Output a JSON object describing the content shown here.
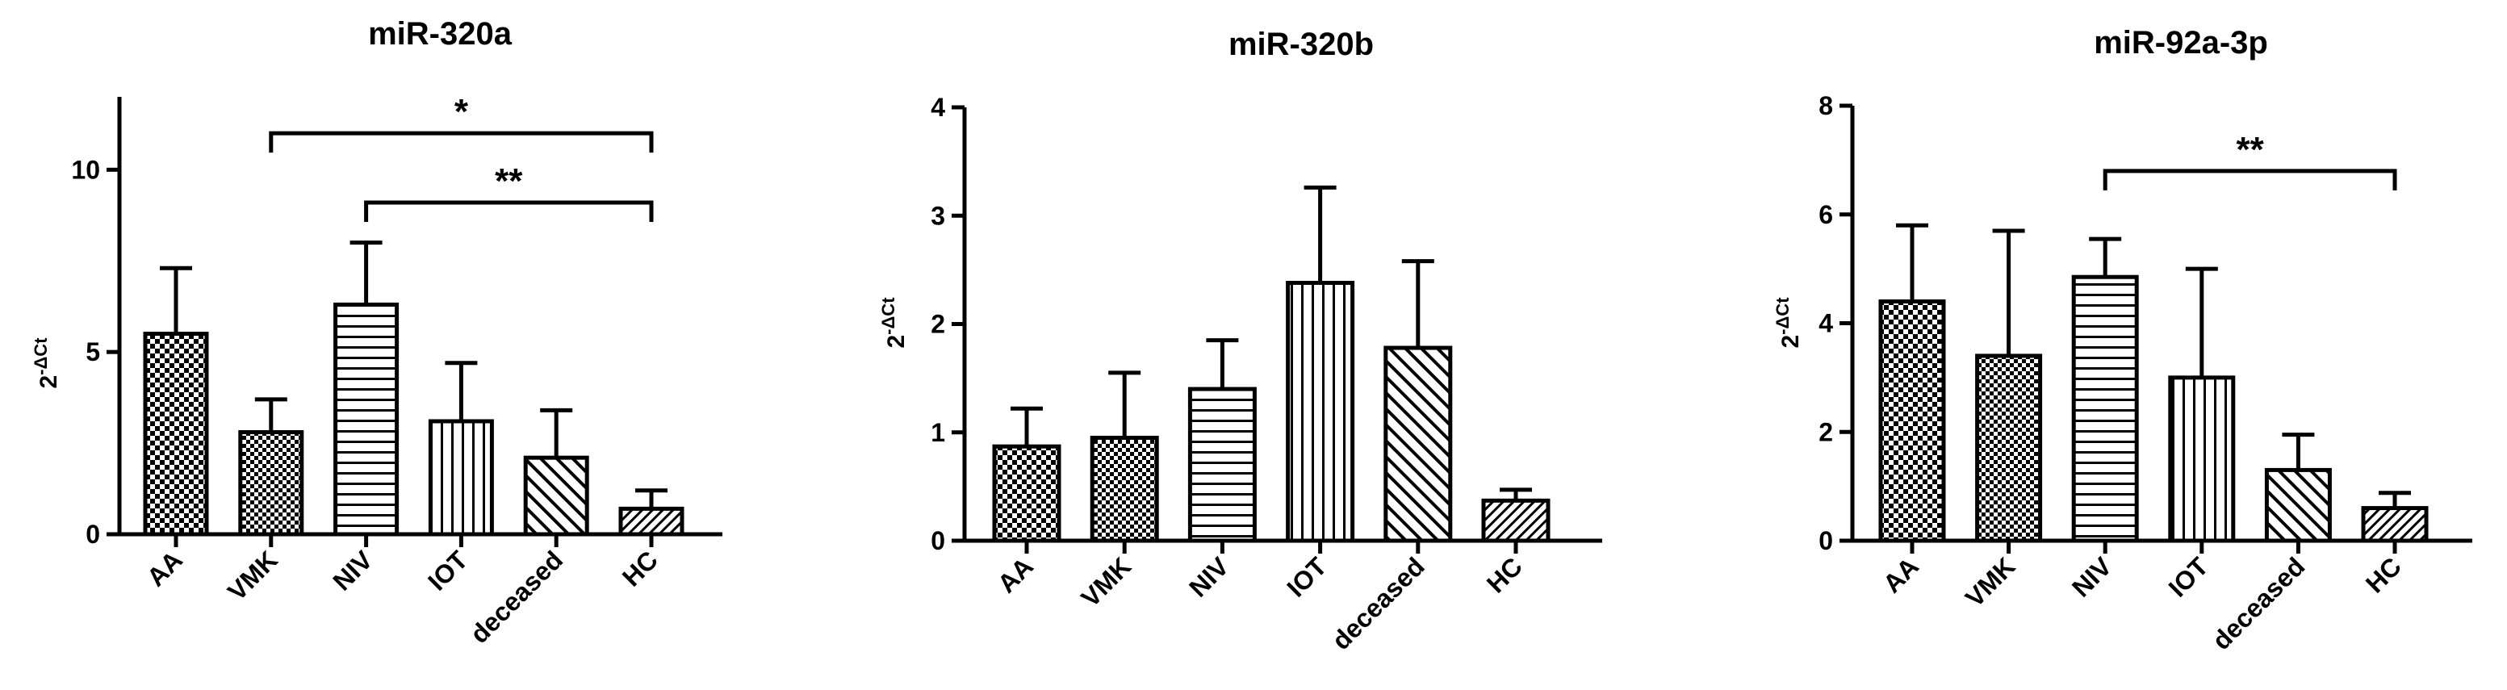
{
  "chart_data": [
    {
      "type": "bar",
      "title": "miR-320a",
      "ylabel_base": "2",
      "ylabel_sup": "-ΔCt",
      "categories": [
        "AA",
        "VMK",
        "NIV",
        "IOT",
        "deceased",
        "HC"
      ],
      "values": [
        5.5,
        2.8,
        6.3,
        3.1,
        2.1,
        0.7
      ],
      "errors": [
        1.8,
        0.9,
        1.7,
        1.6,
        1.3,
        0.5
      ],
      "patterns": [
        "checker-large",
        "checker-small",
        "hlines",
        "vlines",
        "diag-bold",
        "diag-fine"
      ],
      "ylim": [
        0,
        12
      ],
      "yticks": [
        0,
        5,
        10
      ],
      "significance": [
        {
          "from": "VMK",
          "to": "HC",
          "y": 11.0,
          "label": "*"
        },
        {
          "from": "NIV",
          "to": "HC",
          "y": 9.1,
          "label": "**"
        }
      ]
    },
    {
      "type": "bar",
      "title": "miR-320b",
      "ylabel_base": "2",
      "ylabel_sup": "-ΔCt",
      "categories": [
        "AA",
        "VMK",
        "NIV",
        "IOT",
        "deceased",
        "HC"
      ],
      "values": [
        0.87,
        0.95,
        1.4,
        2.38,
        1.78,
        0.37
      ],
      "errors": [
        0.35,
        0.6,
        0.45,
        0.88,
        0.8,
        0.1
      ],
      "patterns": [
        "checker-large",
        "checker-small",
        "hlines",
        "vlines",
        "diag-bold",
        "diag-fine"
      ],
      "ylim": [
        0,
        4
      ],
      "yticks": [
        0,
        1,
        2,
        3,
        4
      ],
      "significance": []
    },
    {
      "type": "bar",
      "title": "miR-92a-3p",
      "ylabel_base": "2",
      "ylabel_sup": "-ΔCt",
      "categories": [
        "AA",
        "VMK",
        "NIV",
        "IOT",
        "deceased",
        "HC"
      ],
      "values": [
        4.4,
        3.4,
        4.85,
        3.0,
        1.3,
        0.6
      ],
      "errors": [
        1.4,
        2.3,
        0.7,
        2.0,
        0.65,
        0.28
      ],
      "patterns": [
        "checker-large",
        "checker-small",
        "hlines",
        "vlines",
        "diag-bold",
        "diag-fine"
      ],
      "ylim": [
        0,
        8
      ],
      "yticks": [
        0,
        2,
        4,
        6,
        8
      ],
      "significance": [
        {
          "from": "NIV",
          "to": "HC",
          "y": 6.8,
          "label": "**"
        }
      ]
    }
  ]
}
